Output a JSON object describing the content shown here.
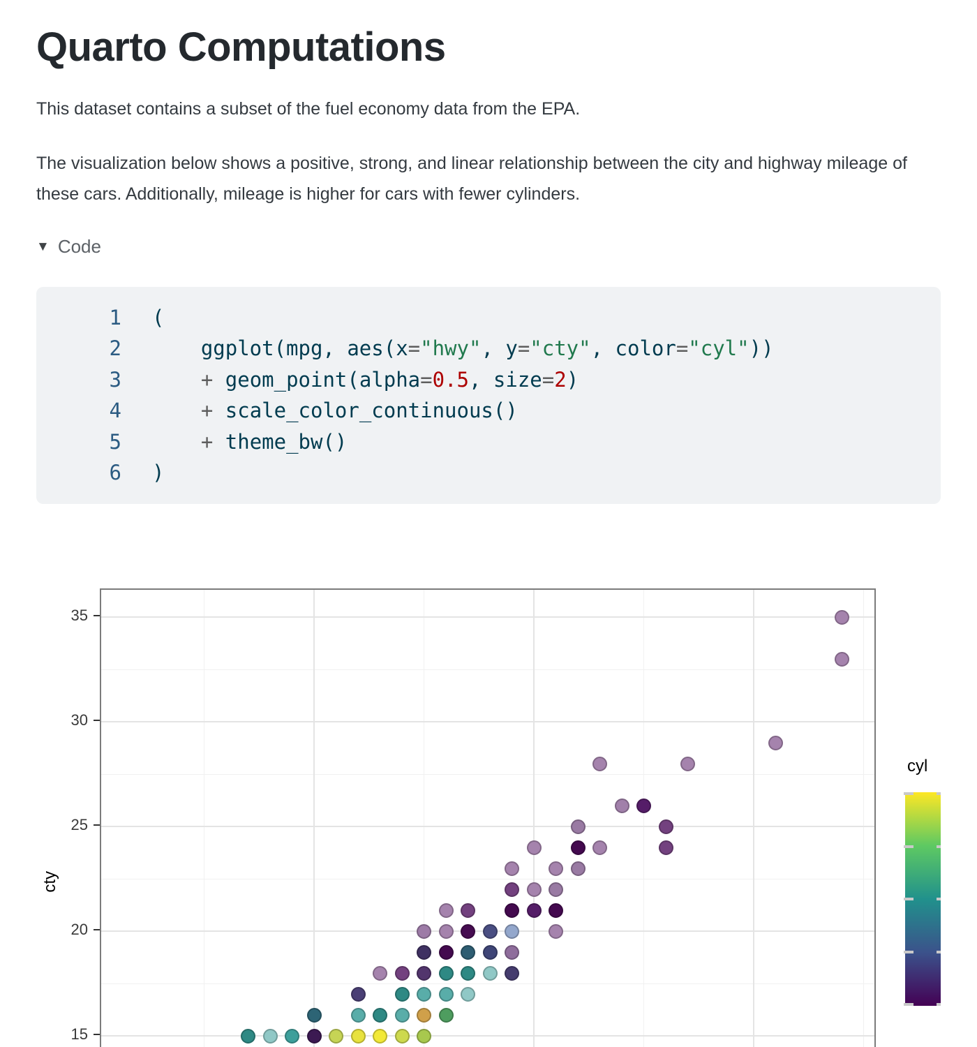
{
  "page": {
    "title": "Quarto Computations",
    "paragraph1": "This dataset contains a subset of the fuel economy data from the EPA.",
    "paragraph2": "The visualization below shows a positive, strong, and linear relationship between the city and highway mileage of these cars. Additionally, mileage is higher for cars with fewer cylinders.",
    "code_toggle_label": "Code",
    "collapse_icon": "▼"
  },
  "code_block": {
    "syntax_colors": {
      "fg": "#003B4F",
      "op": "#5E5E5E",
      "str": "#20794D",
      "num": "#AD0000"
    },
    "lines": [
      {
        "n": "1",
        "segs": [
          [
            "(",
            "fg"
          ]
        ]
      },
      {
        "n": "2",
        "segs": [
          [
            "    ggplot(mpg, aes(x",
            "fg"
          ],
          [
            "=",
            "op"
          ],
          [
            "\"hwy\"",
            "str"
          ],
          [
            ", y",
            "fg"
          ],
          [
            "=",
            "op"
          ],
          [
            "\"cty\"",
            "str"
          ],
          [
            ", color",
            "fg"
          ],
          [
            "=",
            "op"
          ],
          [
            "\"cyl\"",
            "str"
          ],
          [
            "))",
            "fg"
          ]
        ]
      },
      {
        "n": "3",
        "segs": [
          [
            "    ",
            "fg"
          ],
          [
            "+",
            "op"
          ],
          [
            " geom_point(alpha",
            "fg"
          ],
          [
            "=",
            "op"
          ],
          [
            "0.5",
            "num"
          ],
          [
            ", size",
            "fg"
          ],
          [
            "=",
            "op"
          ],
          [
            "2",
            "num"
          ],
          [
            ")",
            "fg"
          ]
        ]
      },
      {
        "n": "4",
        "segs": [
          [
            "    ",
            "fg"
          ],
          [
            "+",
            "op"
          ],
          [
            " scale_color_continuous()",
            "fg"
          ]
        ]
      },
      {
        "n": "5",
        "segs": [
          [
            "    ",
            "fg"
          ],
          [
            "+",
            "op"
          ],
          [
            " theme_bw()",
            "fg"
          ]
        ]
      },
      {
        "n": "6",
        "segs": [
          [
            ")",
            "fg"
          ]
        ]
      }
    ]
  },
  "chart_data": {
    "type": "scatter",
    "title": "",
    "xlabel": "",
    "x_variable": "hwy",
    "ylabel": "cty",
    "theme": "bw",
    "grid": true,
    "point_alpha": 0.5,
    "x_breaks": [
      20,
      30,
      40
    ],
    "x_minor_breaks": [
      15,
      25,
      35,
      45
    ],
    "x_tick_labels_visible": false,
    "y_breaks": [
      35,
      30,
      25,
      20,
      15
    ],
    "y_minor_breaks": [
      32.5,
      27.5,
      22.5,
      17.5
    ],
    "x_visible_range": [
      10.3,
      45.6
    ],
    "y_visible_range": [
      14.4,
      36.3
    ],
    "legend": {
      "title": "cyl",
      "position": "right",
      "type": "colorbar",
      "tick_count": 5,
      "gradient_top_to_bottom": [
        "#fde725",
        "#5ec962",
        "#21918c",
        "#3b528b",
        "#440154"
      ]
    },
    "points_format": [
      "hwy",
      "cty",
      "rendered_fill",
      "cyl_approx"
    ],
    "points": [
      [
        44,
        35,
        "#a583ad",
        4
      ],
      [
        44,
        33,
        "#a583ad",
        4
      ],
      [
        41,
        29,
        "#a583ad",
        4
      ],
      [
        33,
        28,
        "#a583ad",
        4
      ],
      [
        37,
        28,
        "#a583ad",
        4
      ],
      [
        34,
        26,
        "#a180aa",
        4
      ],
      [
        35,
        26,
        "#551d68",
        4
      ],
      [
        32,
        25,
        "#997aa3",
        4
      ],
      [
        36,
        25,
        "#73417f",
        4
      ],
      [
        30,
        24,
        "#a583ad",
        4
      ],
      [
        32,
        24,
        "#44094f",
        4
      ],
      [
        33,
        24,
        "#a583ad",
        4
      ],
      [
        36,
        24,
        "#73417f",
        4
      ],
      [
        29,
        23,
        "#a583ad",
        4
      ],
      [
        31,
        23,
        "#a583ad",
        4
      ],
      [
        32,
        23,
        "#997aa3",
        4
      ],
      [
        29,
        22,
        "#73417f",
        4
      ],
      [
        30,
        22,
        "#a583ad",
        4
      ],
      [
        31,
        22,
        "#997aa3",
        4
      ],
      [
        26,
        21,
        "#a583ad",
        4
      ],
      [
        27,
        21,
        "#73417f",
        4
      ],
      [
        29,
        21,
        "#440a4f",
        4
      ],
      [
        30,
        21,
        "#551d68",
        4
      ],
      [
        31,
        21,
        "#44094f",
        4
      ],
      [
        25,
        20,
        "#9d7ba7",
        4
      ],
      [
        26,
        20,
        "#a583ad",
        4
      ],
      [
        27,
        20,
        "#460c51",
        4
      ],
      [
        28,
        20,
        "#4a4e82",
        5
      ],
      [
        29,
        20,
        "#93a7cc",
        5
      ],
      [
        31,
        20,
        "#a583ad",
        4
      ],
      [
        25,
        19,
        "#3f3162",
        "mix"
      ],
      [
        26,
        19,
        "#440a4f",
        4
      ],
      [
        27,
        19,
        "#2e5d72",
        "mix"
      ],
      [
        28,
        19,
        "#3f4577",
        5
      ],
      [
        29,
        19,
        "#8f6d9c",
        4
      ],
      [
        23,
        18,
        "#a583ad",
        4
      ],
      [
        24,
        18,
        "#73417f",
        4
      ],
      [
        25,
        18,
        "#52356d",
        "mix"
      ],
      [
        26,
        18,
        "#2e8984",
        6
      ],
      [
        27,
        18,
        "#2e8984",
        6
      ],
      [
        28,
        18,
        "#90c8c6",
        6
      ],
      [
        29,
        18,
        "#453c6e",
        "mix"
      ],
      [
        22,
        17,
        "#4a3f75",
        "mix"
      ],
      [
        24,
        17,
        "#2e8984",
        6
      ],
      [
        25,
        17,
        "#59ada9",
        6
      ],
      [
        26,
        17,
        "#59ada9",
        6
      ],
      [
        27,
        17,
        "#90c8c6",
        6
      ],
      [
        20,
        16,
        "#2d6475",
        "mix"
      ],
      [
        22,
        16,
        "#59ada9",
        6
      ],
      [
        23,
        16,
        "#2e8984",
        6
      ],
      [
        24,
        16,
        "#59ada9",
        6
      ],
      [
        25,
        16,
        "#d0a04a",
        "mix"
      ],
      [
        26,
        16,
        "#4e9d5f",
        "mix"
      ],
      [
        17,
        15,
        "#2e8984",
        6
      ],
      [
        18,
        15,
        "#90c8c6",
        6
      ],
      [
        19,
        15,
        "#3d9f9b",
        6
      ],
      [
        20,
        15,
        "#3c1a52",
        "mix"
      ],
      [
        21,
        15,
        "#c6d455",
        "mix"
      ],
      [
        22,
        15,
        "#e8e23e",
        8
      ],
      [
        23,
        15,
        "#f2e937",
        8
      ],
      [
        24,
        15,
        "#cdd94e",
        "mix"
      ],
      [
        25,
        15,
        "#a8c84e",
        "mix"
      ]
    ]
  }
}
